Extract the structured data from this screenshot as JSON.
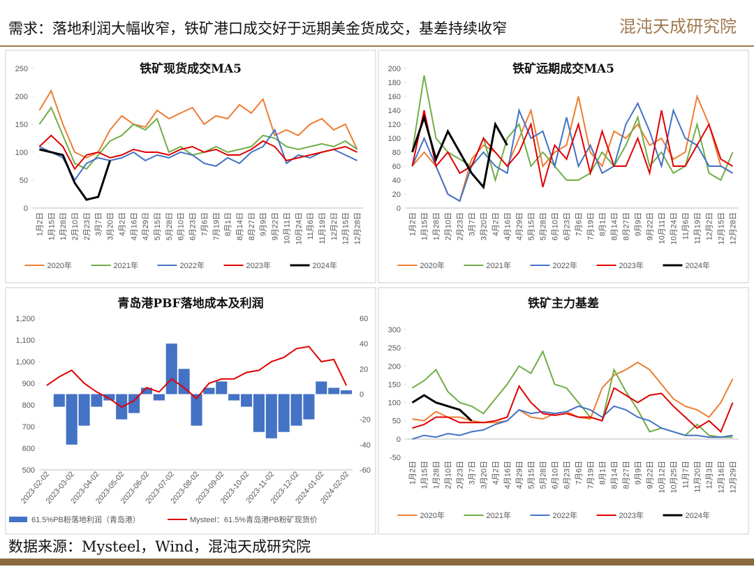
{
  "header": {
    "title": "需求：落地利润大幅收窄，铁矿港口成交好于远期美金货成交，基差持续收窄",
    "logo": "混沌天成研究院"
  },
  "source": "数据来源：Mysteel，Wind，混沌天成研究院",
  "chart_data": [
    {
      "type": "line",
      "title": "铁矿现货成交MA5",
      "ylim": [
        0,
        250
      ],
      "yticks": [
        0,
        50,
        100,
        150,
        200,
        250
      ],
      "categories": [
        "1月2日",
        "1月15日",
        "1月28日",
        "2月10日",
        "2月23日",
        "3月7日",
        "3月20日",
        "4月2日",
        "4月16日",
        "4月29日",
        "5月15日",
        "5月28日",
        "6月10日",
        "6月23日",
        "7月6日",
        "7月19日",
        "8月1日",
        "8月14日",
        "8月27日",
        "9月9日",
        "9月22日",
        "10月11日",
        "10月24日",
        "11月6日",
        "11月19日",
        "12月2日",
        "12月15日",
        "12月28日"
      ],
      "series": [
        {
          "name": "2020年",
          "color": "#ed7d31",
          "values": [
            175,
            210,
            150,
            100,
            90,
            100,
            140,
            165,
            150,
            145,
            175,
            160,
            170,
            180,
            150,
            165,
            160,
            185,
            170,
            195,
            130,
            140,
            130,
            150,
            160,
            140,
            150,
            105
          ]
        },
        {
          "name": "2021年",
          "color": "#70ad47",
          "values": [
            150,
            180,
            130,
            80,
            70,
            95,
            120,
            130,
            150,
            140,
            160,
            100,
            110,
            95,
            100,
            110,
            100,
            105,
            110,
            130,
            125,
            110,
            105,
            110,
            115,
            110,
            120,
            105
          ]
        },
        {
          "name": "2022年",
          "color": "#4472c4",
          "values": [
            110,
            100,
            90,
            50,
            80,
            90,
            85,
            90,
            100,
            85,
            95,
            90,
            100,
            95,
            80,
            75,
            90,
            80,
            100,
            110,
            140,
            80,
            95,
            90,
            100,
            105,
            95,
            85
          ]
        },
        {
          "name": "2023年",
          "color": "#e00000",
          "values": [
            110,
            130,
            110,
            70,
            95,
            100,
            90,
            95,
            105,
            100,
            100,
            95,
            105,
            110,
            100,
            105,
            95,
            95,
            105,
            120,
            110,
            85,
            90,
            95,
            100,
            105,
            110,
            100
          ]
        },
        {
          "name": "2024年",
          "color": "#000000",
          "values": [
            105,
            100,
            95,
            45,
            15,
            20,
            85,
            null,
            null,
            null,
            null,
            null,
            null,
            null,
            null,
            null,
            null,
            null,
            null,
            null,
            null,
            null,
            null,
            null,
            null,
            null,
            null,
            null
          ]
        }
      ]
    },
    {
      "type": "line",
      "title": "铁矿远期成交MA5",
      "ylim": [
        0,
        200
      ],
      "yticks": [
        0,
        20,
        40,
        60,
        80,
        100,
        120,
        140,
        160,
        180,
        200
      ],
      "categories": [
        "1月2日",
        "1月15日",
        "1月28日",
        "2月10日",
        "2月23日",
        "3月7日",
        "3月20日",
        "4月2日",
        "4月16日",
        "4月29日",
        "5月15日",
        "5月28日",
        "6月10日",
        "6月23日",
        "7月6日",
        "7月19日",
        "8月1日",
        "8月14日",
        "8月27日",
        "9月9日",
        "9月22日",
        "10月11日",
        "10月24日",
        "11月6日",
        "11月19日",
        "12月2日",
        "12月15日",
        "12月28日"
      ],
      "series": [
        {
          "name": "2020年",
          "color": "#ed7d31",
          "values": [
            60,
            80,
            60,
            20,
            10,
            70,
            90,
            80,
            60,
            100,
            140,
            60,
            80,
            90,
            160,
            80,
            60,
            110,
            100,
            120,
            90,
            100,
            70,
            80,
            160,
            120,
            60,
            50
          ]
        },
        {
          "name": "2021年",
          "color": "#70ad47",
          "values": [
            80,
            190,
            100,
            80,
            70,
            60,
            100,
            40,
            100,
            120,
            60,
            80,
            60,
            40,
            40,
            50,
            80,
            60,
            90,
            130,
            60,
            80,
            50,
            60,
            120,
            50,
            40,
            80
          ]
        },
        {
          "name": "2022年",
          "color": "#4472c4",
          "values": [
            60,
            100,
            60,
            20,
            10,
            60,
            80,
            60,
            50,
            140,
            100,
            110,
            60,
            130,
            60,
            90,
            50,
            60,
            120,
            150,
            110,
            60,
            140,
            100,
            90,
            60,
            60,
            50
          ]
        },
        {
          "name": "2023年",
          "color": "#e00000",
          "values": [
            60,
            140,
            60,
            80,
            50,
            60,
            100,
            80,
            60,
            80,
            120,
            30,
            90,
            70,
            120,
            50,
            110,
            60,
            60,
            100,
            50,
            140,
            60,
            60,
            90,
            120,
            70,
            60
          ]
        },
        {
          "name": "2024年",
          "color": "#000000",
          "values": [
            80,
            130,
            70,
            110,
            80,
            50,
            30,
            120,
            90,
            null,
            null,
            null,
            null,
            null,
            null,
            null,
            null,
            null,
            null,
            null,
            null,
            null,
            null,
            null,
            null,
            null,
            null,
            null
          ]
        }
      ]
    },
    {
      "type": "combo",
      "title": "青岛港PBF落地成本及利润",
      "ylim": [
        500,
        1200
      ],
      "yticks": [
        500,
        600,
        700,
        800,
        900,
        {
          "value": 1000,
          "label": "1,000"
        },
        {
          "value": 1100,
          "label": "1,100"
        },
        {
          "value": 1200,
          "label": "1,200"
        }
      ],
      "y2lim": [
        -60,
        60
      ],
      "y2ticks": [
        -60,
        -40,
        -20,
        0,
        20,
        40,
        60
      ],
      "categories": [
        "2023-02-02",
        null,
        "2023-03-02",
        null,
        "2023-04-02",
        null,
        "2023-05-02",
        null,
        "2023-06-02",
        null,
        "2023-07-02",
        null,
        "2023-08-02",
        null,
        "2023-09-02",
        null,
        "2023-10-02",
        null,
        "2023-11-02",
        null,
        "2023-12-02",
        null,
        "2024-01-02",
        null,
        "2024-02-02"
      ],
      "series": [
        {
          "name": "61.5%PB粉落地利润（青岛港）",
          "color": "#4472c4",
          "type": "bar",
          "axis": "y2",
          "values": [
            0,
            -10,
            -40,
            -25,
            -10,
            -5,
            -20,
            -15,
            5,
            -5,
            40,
            20,
            -25,
            5,
            10,
            -5,
            -10,
            -30,
            -35,
            -30,
            -25,
            -20,
            10,
            5,
            3
          ]
        },
        {
          "name": "Mysteel：61.5%青岛港PB粉矿现货价",
          "color": "#e00000",
          "type": "line",
          "values": [
            890,
            930,
            960,
            900,
            860,
            830,
            790,
            820,
            880,
            860,
            920,
            880,
            830,
            900,
            920,
            920,
            950,
            960,
            1000,
            1020,
            1060,
            1070,
            1000,
            1010,
            890
          ]
        }
      ]
    },
    {
      "type": "line",
      "title": "铁矿主力基差",
      "ylim": [
        -50,
        300
      ],
      "yticks": [
        -50,
        0,
        50,
        100,
        150,
        200,
        250,
        300
      ],
      "categories": [
        "1月2日",
        "1月15日",
        "1月28日",
        "2月10日",
        "2月23日",
        "3月7日",
        "3月20日",
        "4月2日",
        "4月16日",
        "4月29日",
        "5月15日",
        "5月28日",
        "6月10日",
        "6月23日",
        "7月6日",
        "7月19日",
        "8月1日",
        "8月14日",
        "8月27日",
        "9月9日",
        "9月22日",
        "10月12日",
        "10月25日",
        "11月7日",
        "11月20日",
        "12月3日",
        "12月16日",
        "12月29日"
      ],
      "series": [
        {
          "name": "2020年",
          "color": "#ed7d31",
          "values": [
            55,
            50,
            75,
            60,
            60,
            50,
            45,
            45,
            50,
            80,
            60,
            55,
            70,
            75,
            60,
            55,
            140,
            175,
            190,
            210,
            190,
            150,
            110,
            90,
            80,
            60,
            100,
            165
          ]
        },
        {
          "name": "2021年",
          "color": "#70ad47",
          "values": [
            140,
            160,
            190,
            130,
            100,
            90,
            70,
            110,
            150,
            200,
            180,
            240,
            150,
            140,
            100,
            60,
            50,
            190,
            130,
            80,
            20,
            30,
            20,
            10,
            40,
            10,
            5,
            5
          ]
        },
        {
          "name": "2022年",
          "color": "#4472c4",
          "values": [
            0,
            10,
            5,
            15,
            10,
            20,
            25,
            40,
            50,
            80,
            70,
            75,
            70,
            75,
            90,
            80,
            60,
            90,
            80,
            60,
            50,
            30,
            20,
            10,
            10,
            5,
            5,
            10
          ]
        },
        {
          "name": "2023年",
          "color": "#e00000",
          "values": [
            30,
            40,
            60,
            60,
            45,
            45,
            45,
            50,
            60,
            145,
            100,
            70,
            65,
            70,
            60,
            60,
            50,
            140,
            120,
            100,
            120,
            125,
            90,
            60,
            30,
            50,
            20,
            100
          ]
        },
        {
          "name": "2024年",
          "color": "#000000",
          "values": [
            100,
            120,
            100,
            90,
            80,
            50,
            null,
            null,
            null,
            null,
            null,
            null,
            null,
            null,
            null,
            null,
            null,
            null,
            null,
            null,
            null,
            null,
            null,
            null,
            null,
            null,
            null,
            null
          ]
        }
      ]
    }
  ]
}
